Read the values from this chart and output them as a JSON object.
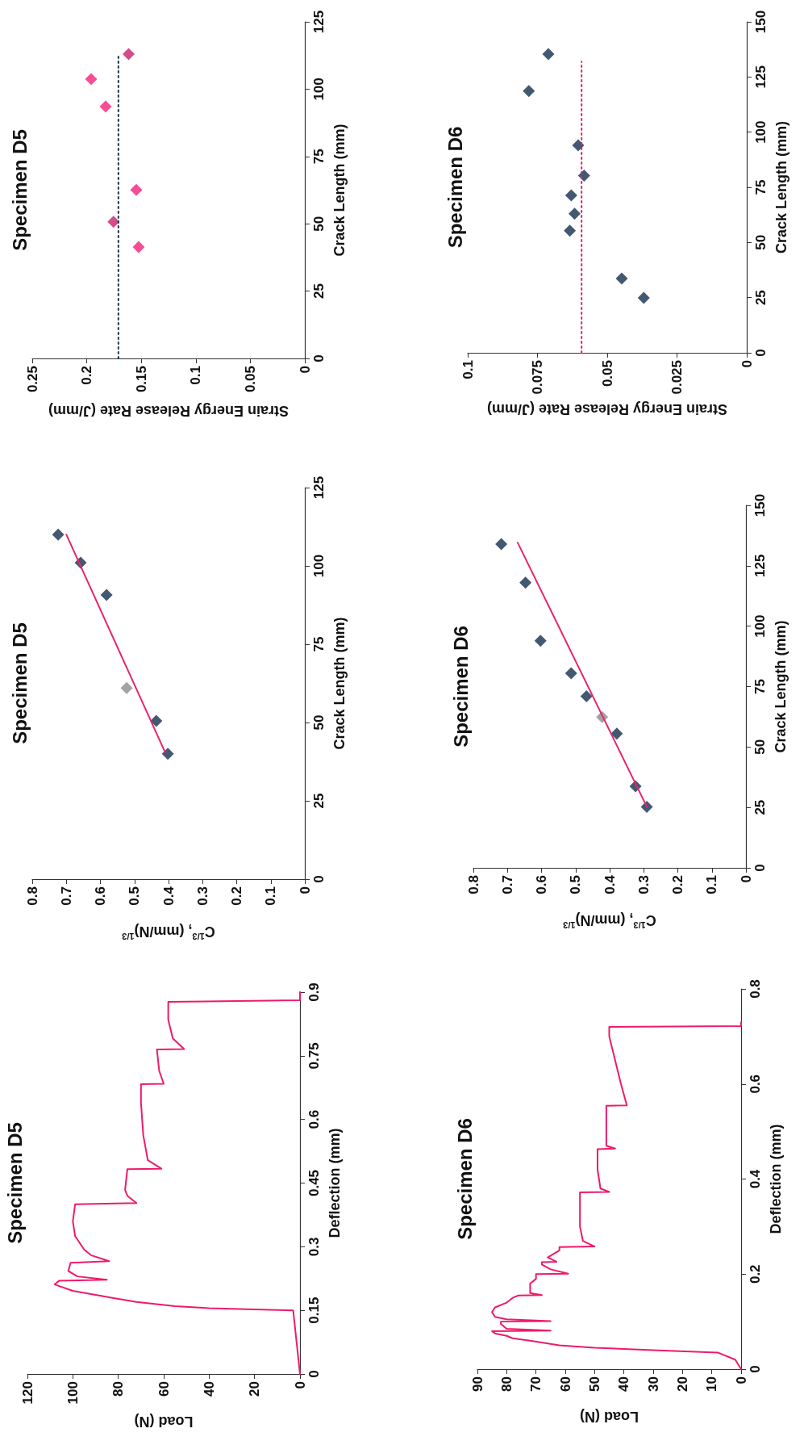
{
  "chart_data": [
    {
      "type": "line",
      "title": "Specimen D5",
      "ylabel": "Deflection (mm)",
      "xlabel": "Load (N)",
      "ylim": [
        0,
        0.9
      ],
      "yticks": [
        0,
        0.15,
        0.3,
        0.45,
        0.6,
        0.75,
        0.9
      ],
      "xlim": [
        120,
        0
      ],
      "xticks": [
        0,
        20,
        40,
        60,
        80,
        100,
        120
      ],
      "series": [
        {
          "color": "#ef1a6b",
          "marker": "none",
          "line_style": "solid",
          "values": [
            0,
            0.05,
            0.1,
            0.15,
            0.152,
            0.155,
            0.16,
            0.17,
            0.179,
            0.196,
            0.211,
            0.22,
            0.222,
            0.23,
            0.243,
            0.262,
            0.266,
            0.28,
            0.293,
            0.325,
            0.36,
            0.4,
            0.403,
            0.42,
            0.434,
            0.483,
            0.484,
            0.504,
            0.563,
            0.639,
            0.683,
            0.684,
            0.715,
            0.765,
            0.766,
            0.791,
            0.835,
            0.877,
            0.881,
            0.9
          ],
          "x": [
            0,
            1,
            2,
            3,
            20,
            40,
            55,
            72,
            82,
            100,
            108,
            106,
            85,
            98,
            102,
            101,
            84,
            92,
            95,
            99,
            100,
            99,
            72,
            76,
            77,
            76,
            61,
            67,
            69,
            70,
            70,
            60,
            62,
            63,
            51,
            56,
            58,
            58,
            0,
            0
          ]
        }
      ]
    },
    {
      "type": "scatter",
      "title": "Specimen D5",
      "ylabel": "Crack Length (mm)",
      "xlabel": "C$^{1/3}$, (mm/N)$^{1/3}$",
      "ylim": [
        0,
        125
      ],
      "yticks": [
        0,
        25,
        50,
        75,
        100,
        125
      ],
      "xlim": [
        0.8,
        0
      ],
      "xticks": [
        0,
        0.1,
        0.2,
        0.3,
        0.4,
        0.5,
        0.6,
        0.7,
        0.8
      ],
      "series": [
        {
          "type": "line",
          "color": "#e8246e",
          "marker": "none",
          "line_style": "solid",
          "values": [
            40.5,
            110
          ],
          "x": [
            0.41,
            0.7
          ]
        },
        {
          "color": "#14304f",
          "marker": "diamond",
          "values": [
            40,
            50.5,
            90.7,
            101,
            110
          ],
          "x": [
            0.402,
            0.436,
            0.582,
            0.658,
            0.724
          ]
        },
        {
          "color": "#8c8c8c",
          "marker": "diamond",
          "values": [
            61
          ],
          "x": [
            0.523
          ]
        }
      ]
    },
    {
      "type": "scatter",
      "title": "Specimen D5",
      "ylabel": "Crack Length (mm)",
      "xlabel": "Strain Energy Release Rate (J/mm)",
      "ylim": [
        0,
        125
      ],
      "yticks": [
        0,
        25,
        50,
        75,
        100,
        125
      ],
      "xlim": [
        0.25,
        0
      ],
      "xticks": [
        0,
        0.05,
        0.1,
        0.15,
        0.2,
        0.25
      ],
      "series": [
        {
          "type": "line",
          "color": "#1f3050",
          "marker": "none",
          "line_style": "dotted",
          "values": [
            0,
            113
          ],
          "x": [
            0.171,
            0.171
          ]
        },
        {
          "color": "#f5217a",
          "colors": [
            "#f5217a",
            "#c8206a",
            "#f5217a",
            "#f5217a",
            "#f5217a",
            "#c8206a"
          ],
          "marker": "diamond",
          "values": [
            41.4,
            50.7,
            62.6,
            93.5,
            103.7,
            113
          ],
          "x": [
            0.1524,
            0.1755,
            0.1546,
            0.1827,
            0.196,
            0.1616
          ]
        }
      ]
    },
    {
      "type": "line",
      "title": "Specimen D6",
      "ylabel": "Deflection (mm)",
      "xlabel": "Load (N)",
      "ylim": [
        0,
        0.8
      ],
      "yticks": [
        0,
        0.2,
        0.4,
        0.6,
        0.8
      ],
      "xlim": [
        90,
        0
      ],
      "xticks": [
        0,
        10,
        20,
        30,
        40,
        50,
        60,
        70,
        80,
        90
      ],
      "series": [
        {
          "color": "#ef1a6b",
          "marker": "none",
          "line_style": "solid",
          "values": [
            0,
            0.02,
            0.035,
            0.04,
            0.045,
            0.05,
            0.06,
            0.065,
            0.07,
            0.075,
            0.08,
            0.081,
            0.085,
            0.095,
            0.1,
            0.101,
            0.105,
            0.11,
            0.12,
            0.13,
            0.14,
            0.15,
            0.155,
            0.156,
            0.16,
            0.18,
            0.19,
            0.2,
            0.201,
            0.21,
            0.22,
            0.225,
            0.226,
            0.235,
            0.25,
            0.257,
            0.258,
            0.27,
            0.3,
            0.35,
            0.372,
            0.373,
            0.38,
            0.42,
            0.463,
            0.464,
            0.47,
            0.52,
            0.554,
            0.555,
            0.6,
            0.65,
            0.7,
            0.72,
            0.722,
            0.73
          ],
          "x": [
            0,
            2,
            8,
            30,
            50,
            62,
            72,
            78,
            80,
            84,
            85,
            65,
            80,
            82,
            82,
            65,
            80,
            84,
            85,
            84,
            80,
            78,
            76,
            68,
            72,
            72,
            70,
            70,
            59,
            65,
            68,
            68,
            63,
            66,
            62,
            62,
            50,
            54,
            55,
            55,
            55,
            45,
            48,
            49,
            49,
            43,
            46,
            46,
            46,
            39,
            41,
            43,
            45,
            45,
            0,
            0
          ]
        }
      ]
    },
    {
      "type": "scatter",
      "title": "Specimen D6",
      "ylabel": "Crack Length (mm)",
      "xlabel": "C$^{1/3}$, (mm/N)$^{1/3}$",
      "ylim": [
        0,
        150
      ],
      "yticks": [
        0,
        25,
        50,
        75,
        100,
        125,
        150
      ],
      "xlim": [
        0.8,
        0
      ],
      "xticks": [
        0,
        0.1,
        0.2,
        0.3,
        0.4,
        0.5,
        0.6,
        0.7,
        0.8
      ],
      "series": [
        {
          "type": "line",
          "color": "#e8246e",
          "marker": "none",
          "line_style": "solid",
          "values": [
            25,
            134.6
          ],
          "x": [
            0.29,
            0.67
          ]
        },
        {
          "color": "#14304f",
          "marker": "diamond",
          "values": [
            25.2,
            33.7,
            55.5,
            71,
            80.5,
            94,
            118,
            134
          ],
          "x": [
            0.291,
            0.324,
            0.379,
            0.468,
            0.513,
            0.603,
            0.647,
            0.718
          ]
        },
        {
          "color": "#8c8c8c",
          "marker": "diamond",
          "values": [
            62.4
          ],
          "x": [
            0.422
          ]
        }
      ]
    },
    {
      "type": "scatter",
      "title": "Specimen D6",
      "ylabel": "Crack Length (mm)",
      "xlabel": "Strain Energy Release Rate (J/mm)",
      "ylim": [
        0,
        150
      ],
      "yticks": [
        0,
        25,
        50,
        75,
        100,
        125,
        150
      ],
      "xlim": [
        0.1,
        0
      ],
      "xticks": [
        0,
        0.025,
        0.05,
        0.075,
        0.1
      ],
      "series": [
        {
          "type": "line",
          "color": "#ef1a6b",
          "marker": "none",
          "line_style": "dotted",
          "values": [
            0,
            132
          ],
          "x": [
            0.0592,
            0.0592
          ]
        },
        {
          "color": "#14304f",
          "marker": "diamond",
          "values": [
            24.9,
            33.7,
            55.3,
            63,
            71.3,
            80.3,
            94,
            118.6,
            135.4
          ],
          "x": [
            0.0369,
            0.0448,
            0.0634,
            0.0617,
            0.0629,
            0.0583,
            0.0604,
            0.0781,
            0.0711
          ]
        }
      ]
    }
  ]
}
